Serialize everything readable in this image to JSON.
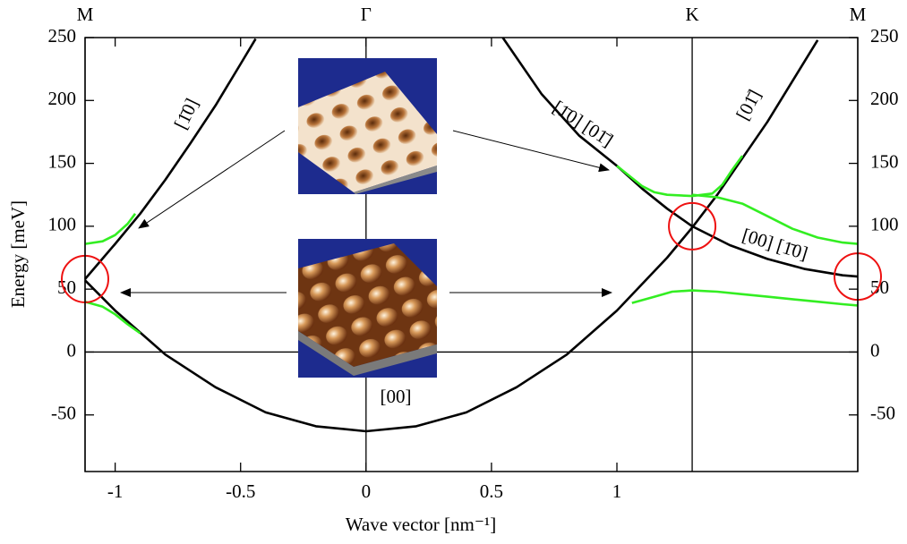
{
  "chart_data": {
    "type": "line",
    "xlabel": "Wave vector [nm⁻¹]",
    "ylabel": "Energy [meV]",
    "xlim": [
      -1.12,
      1.96
    ],
    "ylim": [
      -95,
      250
    ],
    "xticks": [
      -1,
      -0.5,
      0,
      0.5,
      1
    ],
    "yticks": [
      -50,
      0,
      50,
      100,
      150,
      200,
      250
    ],
    "kpoints": [
      {
        "label": "M",
        "value": -1.12
      },
      {
        "label": "Γ",
        "value": 0
      },
      {
        "label": "K",
        "value": 1.3
      },
      {
        "label": "M",
        "value": 1.96
      }
    ],
    "series": [
      {
        "color": "#000000",
        "x": [
          -1.12,
          -1.0,
          -0.8,
          -0.6,
          -0.4,
          -0.2,
          0,
          0.2,
          0.4,
          0.6,
          0.8,
          1.0,
          1.2,
          1.3,
          1.4,
          1.6,
          1.8
        ],
        "values": [
          57,
          33,
          -2,
          -28,
          -48,
          -59,
          -63,
          -59,
          -48,
          -28,
          -2,
          33,
          75,
          99,
          125,
          183,
          248
        ]
      },
      {
        "color": "#000000",
        "x": [
          -1.12,
          -1.0,
          -0.9,
          -0.8,
          -0.7,
          -0.6,
          -0.5,
          -0.44
        ],
        "values": [
          58,
          86,
          110,
          137,
          166,
          196,
          229,
          249
        ]
      },
      {
        "color": "#000000",
        "x": [
          0.545,
          0.7,
          0.85,
          1.0,
          1.1,
          1.2,
          1.3,
          1.45,
          1.6,
          1.75,
          1.9,
          1.96
        ],
        "values": [
          250,
          205,
          172,
          148,
          130,
          114,
          100,
          85,
          74,
          66,
          61,
          60
        ]
      },
      {
        "color": "#33ee22",
        "x": [
          -1.12,
          -1.05,
          -1.0,
          -0.95,
          -0.92
        ],
        "values": [
          86,
          88,
          93,
          102,
          110
        ]
      },
      {
        "color": "#33ee22",
        "x": [
          -1.12,
          -1.05,
          -1.0,
          -0.95,
          -0.9
        ],
        "values": [
          40,
          36,
          30,
          22,
          15
        ]
      },
      {
        "color": "#33ee22",
        "x": [
          1.0,
          1.05,
          1.1,
          1.15,
          1.2,
          1.3,
          1.38,
          1.42,
          1.46,
          1.5
        ],
        "values": [
          148,
          140,
          132,
          127,
          125,
          124,
          126,
          133,
          145,
          156
        ]
      },
      {
        "color": "#33ee22",
        "x": [
          1.3,
          1.4,
          1.5,
          1.6,
          1.7,
          1.8,
          1.9,
          1.96
        ],
        "values": [
          125,
          123,
          118,
          108,
          98,
          91,
          87,
          86
        ]
      },
      {
        "color": "#33ee22",
        "x": [
          1.06,
          1.15,
          1.22,
          1.3,
          1.4,
          1.5,
          1.6,
          1.7,
          1.8,
          1.9,
          1.96
        ],
        "values": [
          39,
          44,
          48,
          49,
          48,
          46,
          44,
          42,
          40,
          38,
          37
        ]
      }
    ],
    "circles": {
      "color": "#ee1111",
      "x": [
        -1.12,
        1.3,
        1.96
      ],
      "values": [
        58,
        100,
        60
      ]
    },
    "annotations": [
      "[1̄0]",
      "[1̄0] [01̄]",
      "[01̄]",
      "[00] [1̄0]",
      "[00]"
    ]
  }
}
